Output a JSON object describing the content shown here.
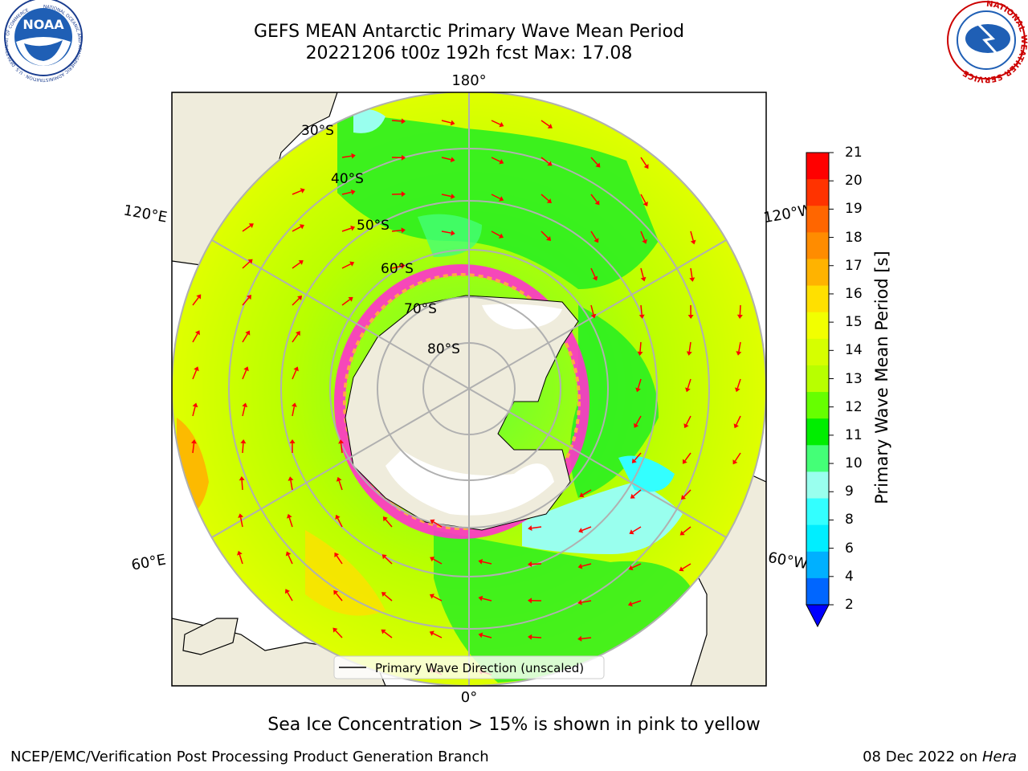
{
  "header": {
    "title_line1": "GEFS MEAN Antarctic Primary Wave Mean Period",
    "title_line2": "20221206 t00z 192h fcst   Max: 17.08"
  },
  "logos": {
    "left": "NOAA",
    "left_ring_text": "NATIONAL OCEANIC AND ATMOSPHERIC ADMINISTRATION · U.S. DEPARTMENT OF COMMERCE",
    "right_ring_text": "NATIONAL WEATHER SERVICE"
  },
  "map": {
    "lon_labels": [
      "180°",
      "120°E",
      "120°W",
      "60°E",
      "60°W",
      "0°"
    ],
    "lat_labels": [
      "30°S",
      "40°S",
      "50°S",
      "60°S",
      "70°S",
      "80°S"
    ],
    "legend_label": "Primary Wave Direction (unscaled)",
    "colors": {
      "land": "#efecdc",
      "arrow": "#ff0000",
      "grid": "#b0b0b0",
      "ice": "#ff33cc"
    }
  },
  "colorbar": {
    "ticks": [
      "21",
      "20",
      "19",
      "18",
      "17",
      "16",
      "15",
      "14",
      "13",
      "12",
      "11",
      "10",
      "9",
      "8",
      "6",
      "4",
      "2"
    ],
    "colors": [
      "#ff0000",
      "#ff3300",
      "#ff6600",
      "#ff8c00",
      "#ffb300",
      "#ffe000",
      "#f2ff00",
      "#d6ff00",
      "#b8ff00",
      "#66ff00",
      "#00ee00",
      "#44ff77",
      "#99ffee",
      "#33ffff",
      "#00eeff",
      "#00b0ff",
      "#0066ff"
    ],
    "under_color": "#0000ff",
    "label": "Primary Wave Mean Period [s]"
  },
  "caption": "Sea Ice Concentration > 15% is shown in pink to yellow",
  "footer": {
    "left": "NCEP/EMC/Verification Post Processing Product Generation Branch",
    "date": "08 Dec 2022 on ",
    "machine": "Hera"
  }
}
